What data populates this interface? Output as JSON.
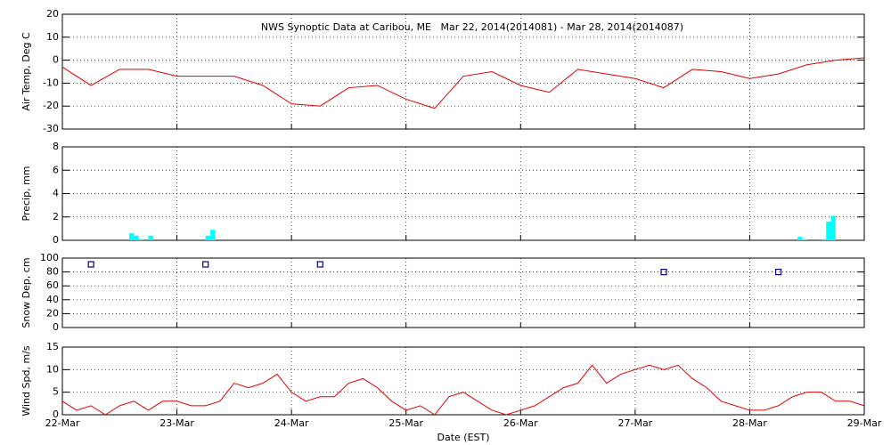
{
  "chart_data": [
    {
      "type": "line",
      "title": "NWS Synoptic Data at Caribou, ME   Mar 22, 2014(2014081) - Mar 28, 2014(2014087)",
      "y_label": "Air Temp, Deg C",
      "x": [
        22,
        22.25,
        22.5,
        22.75,
        23,
        23.25,
        23.5,
        23.75,
        24,
        24.25,
        24.5,
        24.75,
        25,
        25.25,
        25.5,
        25.75,
        26,
        26.25,
        26.5,
        26.75,
        27,
        27.25,
        27.5,
        27.75,
        28,
        28.25,
        28.5,
        28.75,
        29
      ],
      "series": [
        {
          "name": "Air Temp",
          "color": "#e00000",
          "values": [
            -3,
            -11,
            -4,
            -4,
            -7,
            -7,
            -7,
            -11,
            -19,
            -20,
            -12,
            -11,
            -17,
            -21,
            -7,
            -5,
            -11,
            -14,
            -4,
            -6,
            -8,
            -12,
            -4,
            -5,
            -8,
            -6,
            -2,
            0,
            1
          ]
        }
      ],
      "xlim": [
        22,
        29
      ],
      "ylim": [
        -30,
        20
      ],
      "yticks": [
        -30,
        -20,
        -10,
        0,
        10,
        20
      ],
      "grid": true
    },
    {
      "type": "bar",
      "y_label": "Precip, mm",
      "x": [
        22.583,
        22.625,
        22.667,
        22.75,
        23.25,
        23.292,
        28.417,
        28.458,
        28.625,
        28.667,
        28.708
      ],
      "series": [
        {
          "name": "Precip",
          "color": "#00ffff",
          "values": [
            0.6,
            0.4,
            0.1,
            0.4,
            0.4,
            0.9,
            0.3,
            0.1,
            0.1,
            1.6,
            2.1
          ]
        }
      ],
      "xlim": [
        22,
        29
      ],
      "ylim": [
        0,
        8
      ],
      "yticks": [
        0,
        2,
        4,
        6,
        8
      ],
      "grid": true
    },
    {
      "type": "scatter",
      "y_label": "Snow Dep, cm",
      "x": [
        22.25,
        23.25,
        24.25,
        27.25,
        28.25
      ],
      "series": [
        {
          "name": "Snow Depth",
          "color": "#000080",
          "values": [
            91,
            91,
            91,
            80,
            80
          ]
        }
      ],
      "xlim": [
        22,
        29
      ],
      "ylim": [
        0,
        100
      ],
      "yticks": [
        0,
        20,
        40,
        60,
        80,
        100
      ],
      "grid": true
    },
    {
      "type": "line",
      "y_label": "Wind Spd, m/s",
      "x_label": "Date (EST)",
      "x": [
        22,
        22.125,
        22.25,
        22.375,
        22.5,
        22.625,
        22.75,
        22.875,
        23,
        23.125,
        23.25,
        23.375,
        23.5,
        23.625,
        23.75,
        23.875,
        24,
        24.125,
        24.25,
        24.375,
        24.5,
        24.625,
        24.75,
        24.875,
        25,
        25.125,
        25.25,
        25.375,
        25.5,
        25.625,
        25.75,
        25.875,
        26,
        26.125,
        26.25,
        26.375,
        26.5,
        26.625,
        26.75,
        26.875,
        27,
        27.125,
        27.25,
        27.375,
        27.5,
        27.625,
        27.75,
        27.875,
        28,
        28.125,
        28.25,
        28.375,
        28.5,
        28.625,
        28.75,
        28.875,
        29
      ],
      "series": [
        {
          "name": "Wind Speed",
          "color": "#e00000",
          "values": [
            3,
            1,
            2,
            0,
            2,
            3,
            1,
            3,
            3,
            2,
            2,
            3,
            7,
            6,
            7,
            9,
            5,
            3,
            4,
            4,
            7,
            8,
            6,
            3,
            1,
            2,
            0,
            4,
            5,
            3,
            1,
            0,
            1,
            2,
            4,
            6,
            7,
            11,
            7,
            9,
            10,
            11,
            10,
            11,
            8,
            6,
            3,
            2,
            1,
            1,
            2,
            4,
            5,
            5,
            3,
            3,
            2
          ]
        }
      ],
      "xlim": [
        22,
        29
      ],
      "ylim": [
        0,
        15
      ],
      "yticks": [
        0,
        5,
        10,
        15
      ],
      "xticks": [
        {
          "value": 22,
          "label": "22-Mar"
        },
        {
          "value": 23,
          "label": "23-Mar"
        },
        {
          "value": 24,
          "label": "24-Mar"
        },
        {
          "value": 25,
          "label": "25-Mar"
        },
        {
          "value": 26,
          "label": "26-Mar"
        },
        {
          "value": 27,
          "label": "27-Mar"
        },
        {
          "value": 28,
          "label": "28-Mar"
        },
        {
          "value": 29,
          "label": "29-Mar"
        }
      ],
      "grid": true
    }
  ]
}
